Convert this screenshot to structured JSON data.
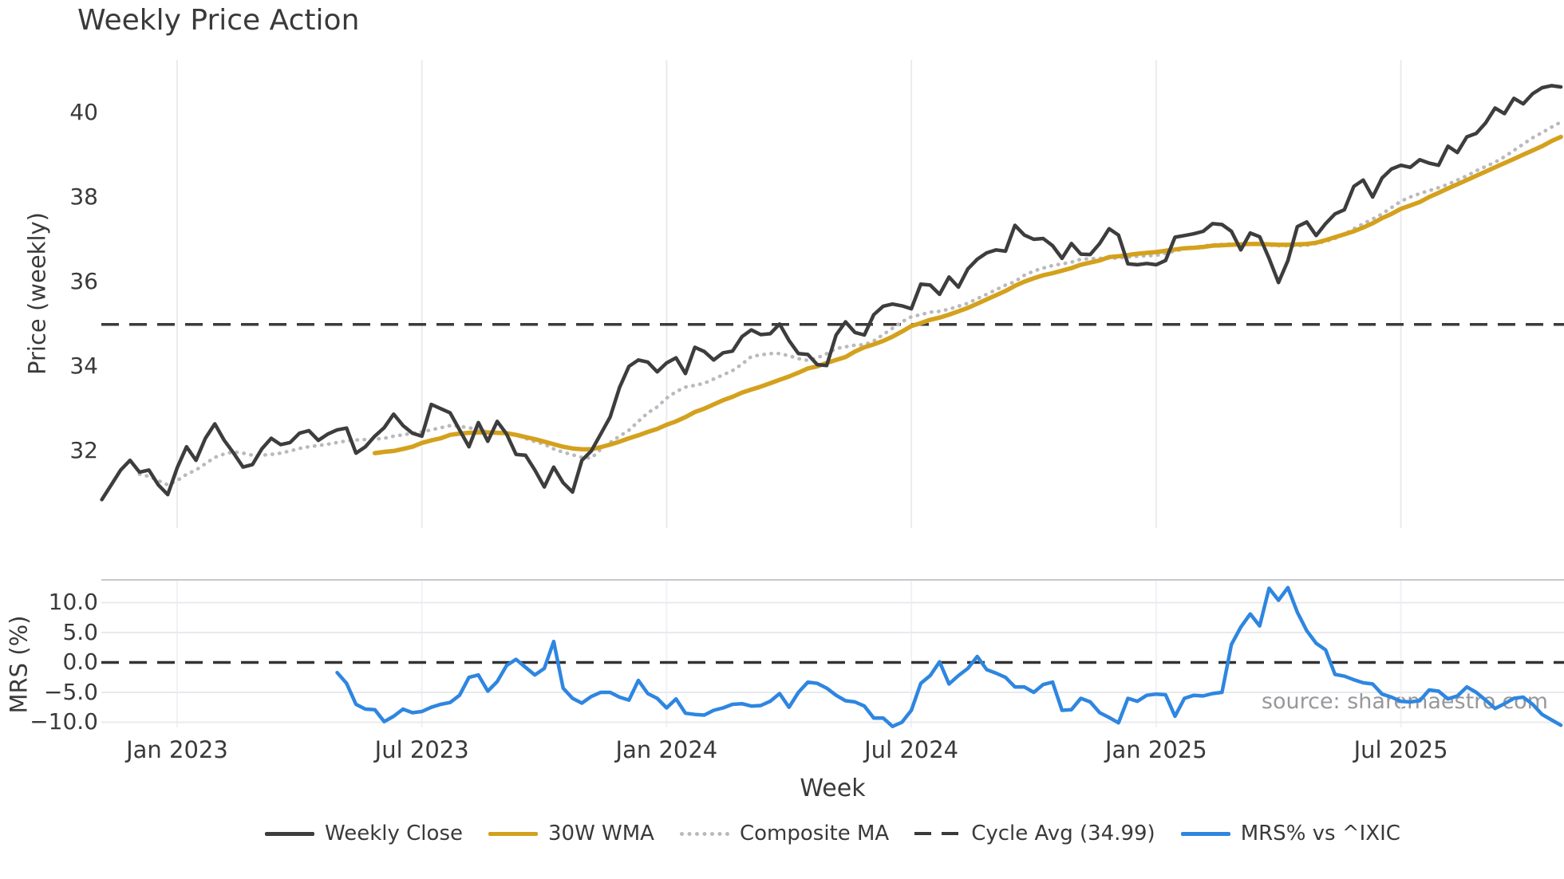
{
  "title": "Weekly Price Action",
  "source_note": "source: sharemaestro.com",
  "colors": {
    "weekly_close": "#3d3d3d",
    "wma_30w": "#d4a11d",
    "composite_ma": "#b9b9be",
    "cycle_avg": "#3a3a3a",
    "mrs_line": "#2e86e0",
    "gridline": "#ebebf0",
    "text": "#3a3a3a",
    "source_text": "#98989c"
  },
  "axes": {
    "price": {
      "ylabel": "Price (weekly)",
      "yticks": [
        32,
        34,
        36,
        38,
        40
      ],
      "ytick_labels": [
        "32",
        "34",
        "36",
        "38",
        "40"
      ],
      "ylim": [
        30.18,
        41.24
      ]
    },
    "mrs": {
      "ylabel": "MRS (%)",
      "yticks": [
        10,
        5,
        0,
        -5,
        -10
      ],
      "ytick_labels": [
        "10.0",
        "5.0",
        "0.0",
        "−5.0",
        "−10.0"
      ],
      "ylim": [
        -10.87,
        13.8
      ]
    },
    "x": {
      "xlabel": "Week",
      "tick_weeks": [
        8,
        34,
        60,
        86,
        112,
        138
      ],
      "tick_labels": [
        "Jan 2023",
        "Jul 2023",
        "Jan 2024",
        "Jul 2024",
        "Jan 2025",
        "Jul 2025"
      ]
    }
  },
  "legend": {
    "items": [
      {
        "label": "Weekly Close",
        "style": "solid",
        "color": "#3d3d3d"
      },
      {
        "label": "30W WMA",
        "style": "solid",
        "color": "#d4a11d"
      },
      {
        "label": "Composite MA",
        "style": "dotted",
        "color": "#b9b9be"
      },
      {
        "label": "Cycle Avg (34.99)",
        "style": "dashed",
        "color": "#3a3a3a"
      },
      {
        "label": "MRS% vs ^IXIC",
        "style": "solid",
        "color": "#2e86e0"
      }
    ]
  },
  "chart_data": [
    {
      "type": "line",
      "panel": "price",
      "title": "Weekly Price Action",
      "xlabel": "Week",
      "ylabel": "Price (weekly)",
      "x_unit": "weeks (weekly samples, ~Nov 2022 to Nov 2025)",
      "grid": "vertical-only",
      "series": [
        {
          "name": "Weekly Close",
          "style": "solid",
          "color": "#3d3d3d",
          "start_week": 0,
          "values": [
            30.85,
            31.2,
            31.55,
            31.78,
            31.5,
            31.55,
            31.2,
            30.97,
            31.6,
            32.1,
            31.78,
            32.3,
            32.64,
            32.25,
            31.95,
            31.62,
            31.68,
            32.05,
            32.3,
            32.15,
            32.2,
            32.42,
            32.48,
            32.25,
            32.4,
            32.5,
            32.54,
            31.95,
            32.1,
            32.35,
            32.55,
            32.87,
            32.6,
            32.42,
            32.35,
            33.1,
            33.0,
            32.9,
            32.5,
            32.1,
            32.67,
            32.23,
            32.7,
            32.4,
            31.92,
            31.9,
            31.55,
            31.15,
            31.62,
            31.25,
            31.03,
            31.78,
            32.0,
            32.4,
            32.8,
            33.5,
            34.0,
            34.15,
            34.1,
            33.87,
            34.08,
            34.2,
            33.83,
            34.45,
            34.35,
            34.15,
            34.32,
            34.36,
            34.7,
            34.86,
            34.75,
            34.77,
            35.0,
            34.61,
            34.3,
            34.28,
            34.04,
            34.02,
            34.74,
            35.05,
            34.8,
            34.74,
            35.22,
            35.42,
            35.47,
            35.43,
            35.36,
            35.94,
            35.92,
            35.7,
            36.11,
            35.87,
            36.3,
            36.53,
            36.68,
            36.75,
            36.72,
            37.33,
            37.1,
            37.0,
            37.02,
            36.85,
            36.55,
            36.9,
            36.65,
            36.64,
            36.9,
            37.25,
            37.1,
            36.42,
            36.4,
            36.43,
            36.4,
            36.5,
            37.05,
            37.09,
            37.13,
            37.19,
            37.37,
            37.35,
            37.19,
            36.75,
            37.15,
            37.06,
            36.55,
            35.98,
            36.5,
            37.3,
            37.41,
            37.09,
            37.37,
            37.6,
            37.7,
            38.25,
            38.4,
            38.0,
            38.45,
            38.66,
            38.75,
            38.7,
            38.88,
            38.8,
            38.75,
            39.2,
            39.05,
            39.42,
            39.5,
            39.75,
            40.1,
            39.97,
            40.33,
            40.2,
            40.44,
            40.58,
            40.63,
            40.6
          ]
        },
        {
          "name": "30W WMA",
          "style": "solid",
          "color": "#d4a11d",
          "start_week": 29,
          "values": [
            31.95,
            31.98,
            32.0,
            32.05,
            32.1,
            32.19,
            32.25,
            32.3,
            32.38,
            32.41,
            32.43,
            32.44,
            32.44,
            32.43,
            32.42,
            32.38,
            32.33,
            32.28,
            32.22,
            32.16,
            32.1,
            32.06,
            32.04,
            32.04,
            32.09,
            32.15,
            32.22,
            32.3,
            32.37,
            32.45,
            32.52,
            32.62,
            32.7,
            32.8,
            32.92,
            33.0,
            33.1,
            33.2,
            33.28,
            33.38,
            33.45,
            33.52,
            33.6,
            33.68,
            33.76,
            33.85,
            33.95,
            34.0,
            34.08,
            34.15,
            34.22,
            34.35,
            34.45,
            34.52,
            34.6,
            34.7,
            34.82,
            34.95,
            35.02,
            35.1,
            35.15,
            35.22,
            35.3,
            35.38,
            35.48,
            35.58,
            35.68,
            35.78,
            35.9,
            36.0,
            36.08,
            36.15,
            36.2,
            36.26,
            36.32,
            36.4,
            36.45,
            36.5,
            36.58,
            36.6,
            36.63,
            36.66,
            36.68,
            36.7,
            36.73,
            36.76,
            36.79,
            36.8,
            36.82,
            36.85,
            36.86,
            36.87,
            36.88,
            36.89,
            36.89,
            36.88,
            36.87,
            36.87,
            36.88,
            36.89,
            36.92,
            36.98,
            37.05,
            37.12,
            37.19,
            37.28,
            37.38,
            37.5,
            37.6,
            37.72,
            37.8,
            37.88,
            38.0,
            38.1,
            38.2,
            38.3,
            38.4,
            38.5,
            38.6,
            38.7,
            38.8,
            38.9,
            39.0,
            39.1,
            39.2,
            39.32,
            39.42
          ]
        },
        {
          "name": "Composite MA",
          "style": "dotted",
          "color": "#b9b9be",
          "start_week": 4,
          "values": [
            31.45,
            31.4,
            31.3,
            31.2,
            31.3,
            31.45,
            31.55,
            31.7,
            31.85,
            31.93,
            31.98,
            31.95,
            31.9,
            31.9,
            31.92,
            31.95,
            32.0,
            32.06,
            32.1,
            32.13,
            32.16,
            32.2,
            32.24,
            32.26,
            32.27,
            32.28,
            32.3,
            32.35,
            32.38,
            32.42,
            32.45,
            32.5,
            32.55,
            32.6,
            32.58,
            32.55,
            32.5,
            32.45,
            32.43,
            32.42,
            32.38,
            32.3,
            32.22,
            32.16,
            32.05,
            31.97,
            31.91,
            31.85,
            31.83,
            32.04,
            32.2,
            32.35,
            32.49,
            32.7,
            32.9,
            33.04,
            33.25,
            33.4,
            33.51,
            33.55,
            33.6,
            33.7,
            33.8,
            33.9,
            34.05,
            34.23,
            34.27,
            34.3,
            34.3,
            34.25,
            34.18,
            34.14,
            34.2,
            34.3,
            34.42,
            34.46,
            34.5,
            34.51,
            34.6,
            34.75,
            34.9,
            35.05,
            35.17,
            35.22,
            35.28,
            35.3,
            35.35,
            35.42,
            35.49,
            35.6,
            35.7,
            35.81,
            35.92,
            36.0,
            36.15,
            36.25,
            36.32,
            36.38,
            36.42,
            36.46,
            36.53,
            36.54,
            36.55,
            36.55,
            36.56,
            36.58,
            36.6,
            36.61,
            36.62,
            36.67,
            36.72,
            36.78,
            36.81,
            36.84,
            36.87,
            36.88,
            36.89,
            36.89,
            36.89,
            36.88,
            36.86,
            36.85,
            36.85,
            36.85,
            36.86,
            36.9,
            36.95,
            37.02,
            37.12,
            37.25,
            37.37,
            37.48,
            37.6,
            37.75,
            37.9,
            38.0,
            38.08,
            38.15,
            38.22,
            38.3,
            38.4,
            38.5,
            38.62,
            38.72,
            38.82,
            38.95,
            39.1,
            39.25,
            39.4,
            39.52,
            39.65,
            39.77
          ]
        },
        {
          "name": "Cycle Avg",
          "style": "dashed",
          "color": "#3a3a3a",
          "constant": 34.99
        }
      ]
    },
    {
      "type": "line",
      "panel": "mrs",
      "ylabel": "MRS (%)",
      "grid": "both",
      "series": [
        {
          "name": "MRS% vs ^IXIC",
          "style": "solid",
          "color": "#2e86e0",
          "start_week": 25,
          "values": [
            -1.7,
            -3.5,
            -7.0,
            -7.8,
            -7.9,
            -9.9,
            -9.0,
            -7.8,
            -8.4,
            -8.2,
            -7.5,
            -7.0,
            -6.7,
            -5.5,
            -2.5,
            -2.1,
            -4.8,
            -3.2,
            -0.5,
            0.5,
            -0.8,
            -2.1,
            -1.0,
            3.5,
            -4.3,
            -6.0,
            -6.8,
            -5.7,
            -5.0,
            -5.0,
            -5.8,
            -6.3,
            -3.0,
            -5.2,
            -6.0,
            -7.6,
            -6.1,
            -8.5,
            -8.7,
            -8.8,
            -8.0,
            -7.6,
            -7.0,
            -6.9,
            -7.3,
            -7.2,
            -6.5,
            -5.2,
            -7.5,
            -5.0,
            -3.3,
            -3.5,
            -4.3,
            -5.5,
            -6.4,
            -6.6,
            -7.3,
            -9.3,
            -9.3,
            -10.7,
            -10.0,
            -8.0,
            -3.5,
            -2.2,
            0.1,
            -3.6,
            -2.2,
            -1.0,
            1.0,
            -1.2,
            -1.8,
            -2.5,
            -4.1,
            -4.1,
            -5.0,
            -3.7,
            -3.3,
            -8.0,
            -7.9,
            -6.0,
            -6.6,
            -8.4,
            -9.2,
            -10.1,
            -6.0,
            -6.5,
            -5.5,
            -5.3,
            -5.4,
            -9.0,
            -6.0,
            -5.5,
            -5.6,
            -5.2,
            -5.0,
            3.0,
            5.9,
            8.1,
            6.1,
            12.4,
            10.4,
            12.5,
            8.4,
            5.3,
            3.2,
            2.1,
            -2.0,
            -2.3,
            -2.9,
            -3.4,
            -3.6,
            -5.3,
            -5.8,
            -6.5,
            -6.6,
            -6.4,
            -4.6,
            -4.8,
            -6.1,
            -5.6,
            -4.1,
            -5.0,
            -6.3,
            -7.7,
            -6.9,
            -6.0,
            -5.8,
            -7.0,
            -8.7,
            -9.6,
            -10.5
          ]
        },
        {
          "name": "Zero Line",
          "style": "dashed",
          "color": "#333333",
          "constant": 0
        }
      ]
    }
  ]
}
